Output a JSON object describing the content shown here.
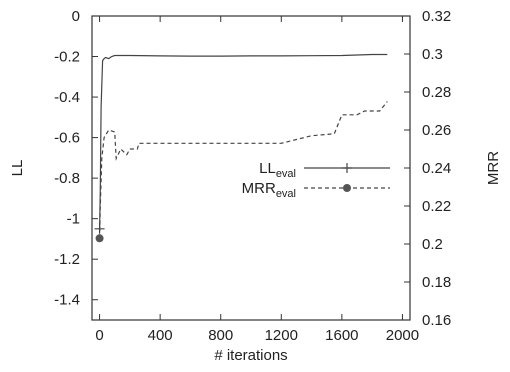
{
  "chart_data": {
    "type": "line",
    "title": "",
    "xlabel": "# iterations",
    "ylabel_left": "LL",
    "ylabel_right": "MRR",
    "xlim": [
      -50,
      2050
    ],
    "ylim_left": [
      -1.5,
      0
    ],
    "ylim_right": [
      0.16,
      0.32
    ],
    "x_ticks": [
      0,
      400,
      800,
      1200,
      1600,
      2000
    ],
    "y_left_ticks": [
      0,
      -0.2,
      -0.4,
      -0.6,
      -0.8,
      -1,
      -1.2,
      -1.4
    ],
    "y_right_ticks": [
      0.32,
      0.3,
      0.28,
      0.26,
      0.24,
      0.22,
      0.2,
      0.18,
      0.16
    ],
    "grid": false,
    "legend_position": "center-right",
    "series": [
      {
        "name": "LL",
        "name_subscript": "eval",
        "axis": "left",
        "style": "solid",
        "marker": "plus",
        "color": "#444444",
        "x": [
          0,
          5,
          10,
          20,
          30,
          40,
          60,
          80,
          100,
          200,
          400,
          600,
          800,
          1000,
          1200,
          1400,
          1600,
          1800,
          1900
        ],
        "y": [
          -1.05,
          -0.85,
          -0.45,
          -0.22,
          -0.21,
          -0.205,
          -0.21,
          -0.2,
          -0.195,
          -0.195,
          -0.197,
          -0.198,
          -0.198,
          -0.197,
          -0.197,
          -0.196,
          -0.195,
          -0.19,
          -0.19
        ]
      },
      {
        "name": "MRR",
        "name_subscript": "eval",
        "axis": "right",
        "style": "dashed",
        "marker": "circle",
        "color": "#444444",
        "x": [
          0,
          5,
          15,
          30,
          60,
          100,
          110,
          140,
          180,
          200,
          250,
          260,
          400,
          800,
          1200,
          1300,
          1400,
          1550,
          1600,
          1700,
          1750,
          1850,
          1900
        ],
        "y": [
          0.203,
          0.22,
          0.245,
          0.256,
          0.26,
          0.259,
          0.245,
          0.25,
          0.247,
          0.25,
          0.25,
          0.253,
          0.253,
          0.253,
          0.253,
          0.255,
          0.257,
          0.258,
          0.268,
          0.268,
          0.27,
          0.27,
          0.275
        ]
      }
    ]
  }
}
